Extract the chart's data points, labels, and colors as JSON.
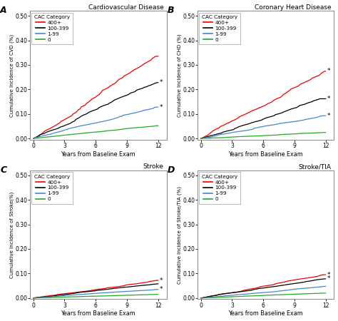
{
  "panels": [
    {
      "label": "A",
      "title": "Cardiovascular Disease",
      "ylabel": "Cumulative Incidence of CVD (%)",
      "ylim": [
        -0.005,
        0.52
      ],
      "yticks": [
        0.0,
        0.1,
        0.2,
        0.3,
        0.4,
        0.5
      ],
      "end_values": {
        "red": 0.335,
        "black": 0.228,
        "blue": 0.128,
        "green": 0.052
      },
      "stars": {
        "black": 0.228,
        "blue": 0.128
      }
    },
    {
      "label": "B",
      "title": "Coronary Heart Disease",
      "ylabel": "Cumulative Incidence of CHD (%)",
      "ylim": [
        -0.005,
        0.52
      ],
      "yticks": [
        0.0,
        0.1,
        0.2,
        0.3,
        0.4,
        0.5
      ],
      "end_values": {
        "red": 0.274,
        "black": 0.162,
        "blue": 0.093,
        "green": 0.025
      },
      "stars": {
        "red": 0.274,
        "black": 0.162,
        "blue": 0.093
      }
    },
    {
      "label": "C",
      "title": "Stroke",
      "ylabel": "Cumulative Incidence of Stroke(%)",
      "ylim": [
        -0.005,
        0.52
      ],
      "yticks": [
        0.0,
        0.1,
        0.2,
        0.3,
        0.4,
        0.5
      ],
      "end_values": {
        "red": 0.072,
        "black": 0.058,
        "blue": 0.035,
        "green": 0.015
      },
      "stars": {
        "red": 0.072,
        "blue": 0.035
      }
    },
    {
      "label": "D",
      "title": "Stroke/TIA",
      "ylabel": "Cumulative Incidence of Stroke/TIA (%)",
      "ylim": [
        -0.005,
        0.52
      ],
      "yticks": [
        0.0,
        0.1,
        0.2,
        0.3,
        0.4,
        0.5
      ],
      "end_values": {
        "red": 0.095,
        "black": 0.078,
        "blue": 0.048,
        "green": 0.02
      },
      "stars": {
        "red": 0.095,
        "black": 0.078
      }
    }
  ],
  "colors": {
    "red": "#EE0000",
    "black": "#000000",
    "blue": "#4488CC",
    "green": "#22AA22"
  },
  "legend_labels": [
    "400+",
    "100-399",
    "1-99",
    "0"
  ],
  "legend_color_keys": [
    "red",
    "black",
    "blue",
    "green"
  ],
  "xlabel": "Years from Baseline Exam",
  "xticks": [
    0,
    3,
    6,
    9,
    12
  ],
  "xlim": [
    -0.3,
    12.8
  ]
}
